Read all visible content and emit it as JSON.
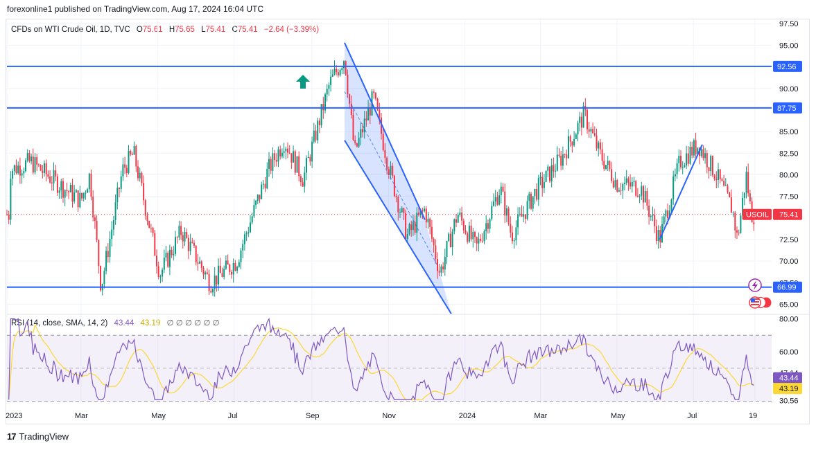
{
  "header": {
    "published": "forexonline1 published on TradingView.com, Aug 17, 2024 16:04 UTC"
  },
  "legend": {
    "symbol": "CFDs on WTI Crude Oil, 1D, TVC",
    "open_label": "O",
    "open": "75.61",
    "high_label": "H",
    "high": "75.65",
    "low_label": "L",
    "low": "75.41",
    "close_label": "C",
    "close": "75.41",
    "change": "−2.64 (−3.39%)"
  },
  "rsi_legend": {
    "title": "RSI (14, close, SMA, 14, 2)",
    "rsi": "43.44",
    "sma": "43.19",
    "extras": "∅ ∅ ∅ ∅ ∅ ∅"
  },
  "footer": {
    "brand": "TradingView"
  },
  "colors": {
    "up": "#089981",
    "down": "#f23645",
    "line": "#2962ff",
    "rsi": "#7e57c2",
    "rsi_sma": "#fdd835"
  },
  "chart_data": [
    {
      "type": "candlestick",
      "symbol": "USOIL",
      "timeframe": "1D",
      "price_axis": {
        "ticks": [
          97.5,
          95.0,
          90.0,
          85.0,
          82.5,
          80.0,
          77.5,
          72.5,
          70.0,
          67.5,
          65.0
        ],
        "range": [
          64.0,
          98.0
        ]
      },
      "x_ticks": [
        "2023",
        "Mar",
        "May",
        "Jul",
        "Sep",
        "Nov",
        "2024",
        "Mar",
        "May",
        "Jul",
        "19"
      ],
      "horizontal_levels": [
        {
          "price": 92.56,
          "label": "92.56"
        },
        {
          "price": 87.75,
          "label": "87.75"
        },
        {
          "price": 66.99,
          "label": "66.99"
        }
      ],
      "last_price": {
        "symbol_label": "USOIL",
        "value": 75.41,
        "label": "75.41"
      },
      "price_path": [
        [
          "2023-01-03",
          80.5
        ],
        [
          "2023-01-20",
          81.5
        ],
        [
          "2023-02-15",
          78.5
        ],
        [
          "2023-03-01",
          77.0
        ],
        [
          "2023-03-08",
          80.0
        ],
        [
          "2023-03-17",
          67.0
        ],
        [
          "2023-04-03",
          80.5
        ],
        [
          "2023-04-12",
          82.5
        ],
        [
          "2023-05-03",
          68.5
        ],
        [
          "2023-05-20",
          73.5
        ],
        [
          "2023-06-12",
          67.5
        ],
        [
          "2023-07-03",
          70.0
        ],
        [
          "2023-07-28",
          80.5
        ],
        [
          "2023-08-10",
          84.0
        ],
        [
          "2023-08-25",
          79.5
        ],
        [
          "2023-09-15",
          90.5
        ],
        [
          "2023-09-27",
          93.7
        ],
        [
          "2023-10-05",
          82.5
        ],
        [
          "2023-10-20",
          89.0
        ],
        [
          "2023-11-01",
          81.0
        ],
        [
          "2023-11-16",
          72.9
        ],
        [
          "2023-11-30",
          76.0
        ],
        [
          "2023-12-12",
          68.6
        ],
        [
          "2023-12-26",
          75.5
        ],
        [
          "2024-01-10",
          71.5
        ],
        [
          "2024-01-29",
          78.5
        ],
        [
          "2024-02-07",
          73.0
        ],
        [
          "2024-02-26",
          78.0
        ],
        [
          "2024-03-18",
          82.0
        ],
        [
          "2024-04-05",
          87.0
        ],
        [
          "2024-04-17",
          82.5
        ],
        [
          "2024-05-01",
          79.0
        ],
        [
          "2024-05-20",
          78.5
        ],
        [
          "2024-06-04",
          72.5
        ],
        [
          "2024-06-20",
          81.5
        ],
        [
          "2024-07-05",
          83.5
        ],
        [
          "2024-07-19",
          80.0
        ],
        [
          "2024-08-01",
          76.0
        ],
        [
          "2024-08-05",
          72.5
        ],
        [
          "2024-08-12",
          80.0
        ],
        [
          "2024-08-16",
          75.41
        ]
      ],
      "drawings": {
        "descending_channel": {
          "upper": [
            [
              "2023-09-27",
              95.3
            ],
            [
              "2023-11-30",
              74.8
            ]
          ],
          "lower": [
            [
              "2023-09-27",
              84.0
            ],
            [
              "2023-12-21",
              63.9
            ]
          ]
        },
        "rising_trendline": [
          [
            "2024-06-04",
            72.5
          ],
          [
            "2024-07-08",
            83.5
          ]
        ]
      }
    },
    {
      "type": "line",
      "title": "RSI (14, close, SMA, 14, 2)",
      "axis": {
        "ticks": [
          80.0,
          60.0,
          47.14,
          43.44,
          43.19,
          30.56
        ],
        "range": [
          29.0,
          81.0
        ]
      },
      "bands": {
        "upper": 70,
        "middle": 50,
        "lower": 30
      },
      "series": [
        {
          "name": "RSI",
          "last": 43.44
        },
        {
          "name": "SMA",
          "last": 43.19
        }
      ]
    }
  ]
}
